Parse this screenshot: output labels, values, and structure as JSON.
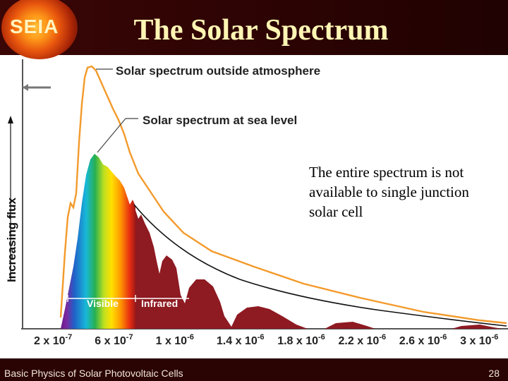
{
  "logo": {
    "text": "SEIA"
  },
  "title": "The Solar Spectrum",
  "labels": {
    "outside": "Solar spectrum outside atmosphere",
    "sea_level": "Solar spectrum at sea level",
    "y_axis": "Increasing flux",
    "visible": "Visible",
    "infrared": "Infrared"
  },
  "note": "The entire spectrum is not available to single junction solar cell",
  "x_ticks": [
    {
      "base": "2 x 10",
      "exp": "-7"
    },
    {
      "base": "6 x 10",
      "exp": "-7"
    },
    {
      "base": "1 x 10",
      "exp": "-6"
    },
    {
      "base": "1.4 x 10",
      "exp": "-6"
    },
    {
      "base": "1.8 x 10",
      "exp": "-6"
    },
    {
      "base": "2.2 x 10",
      "exp": "-6"
    },
    {
      "base": "2.6 x 10",
      "exp": "-6"
    },
    {
      "base": "3 x 10",
      "exp": "-6"
    }
  ],
  "footer": {
    "left": "Basic Physics of Solar Photovoltaic Cells",
    "page": "28"
  },
  "colors": {
    "header_bg": "#2b0303",
    "title": "#fff6b4",
    "outside_curve": "#f39a2b",
    "absorption": "#8e1a22",
    "visible_label": "#ffffff"
  }
}
